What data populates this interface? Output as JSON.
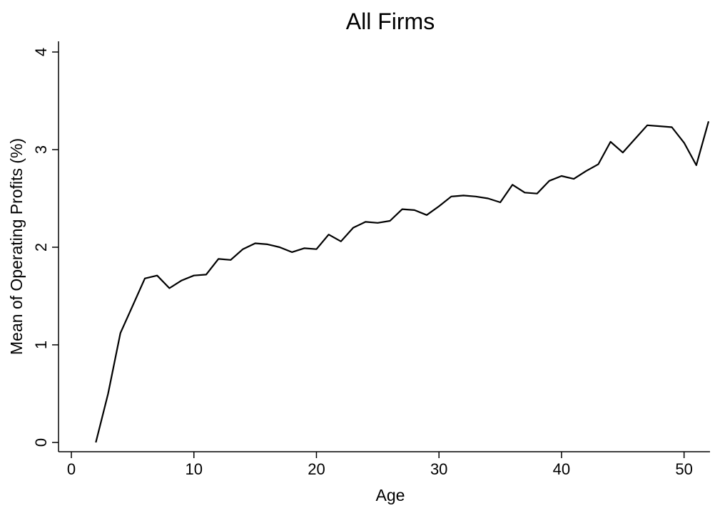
{
  "chart_data": {
    "type": "line",
    "title": "All Firms",
    "xlabel": "Age",
    "ylabel": "Mean of Operating Profits (%)",
    "xlim": [
      0,
      52
    ],
    "ylim": [
      0,
      4
    ],
    "x_ticks": [
      0,
      10,
      20,
      30,
      40,
      50
    ],
    "y_ticks": [
      0,
      1,
      2,
      3,
      4
    ],
    "grid": false,
    "line_color": "#000000",
    "series": [
      {
        "x": [
          2,
          3,
          4,
          5,
          6,
          7,
          8,
          9,
          10,
          11,
          12,
          13,
          14,
          15,
          16,
          17,
          18,
          19,
          20,
          21,
          22,
          23,
          24,
          25,
          26,
          27,
          28,
          29,
          30,
          31,
          32,
          33,
          34,
          35,
          36,
          37,
          38,
          39,
          40,
          41,
          42,
          43,
          44,
          45,
          46,
          47,
          48,
          49,
          50,
          51,
          52
        ],
        "values": [
          0.0,
          0.5,
          1.12,
          1.4,
          1.68,
          1.71,
          1.58,
          1.66,
          1.71,
          1.72,
          1.88,
          1.87,
          1.98,
          2.04,
          2.03,
          2.0,
          1.95,
          1.99,
          1.98,
          2.13,
          2.06,
          2.2,
          2.26,
          2.25,
          2.27,
          2.39,
          2.38,
          2.33,
          2.42,
          2.52,
          2.53,
          2.52,
          2.5,
          2.46,
          2.64,
          2.56,
          2.55,
          2.68,
          2.73,
          2.7,
          2.78,
          2.85,
          3.08,
          2.97,
          3.11,
          3.25,
          3.24,
          3.23,
          3.07,
          2.84,
          3.29
        ]
      }
    ]
  }
}
